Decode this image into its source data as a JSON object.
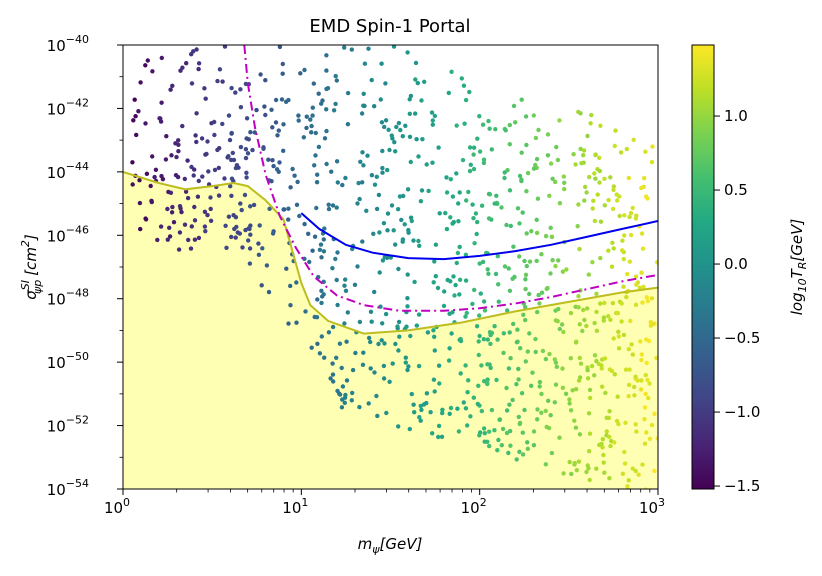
{
  "chart_data": {
    "type": "scatter",
    "title": "EMD Spin-1 Portal",
    "xlabel": {
      "base": "m",
      "sub": "ψ",
      "unit": "[GeV]"
    },
    "ylabel": {
      "base": "σ",
      "sup": "SI",
      "sub": "ψp",
      "unit": "[cm",
      "unit_sup": "2",
      "unit_end": "]"
    },
    "x_scale": "log",
    "y_scale": "log",
    "xlim_exp": [
      0,
      3
    ],
    "ylim_exp": [
      -54,
      -40
    ],
    "x_ticks": [
      {
        "base": "10",
        "exp": "0"
      },
      {
        "base": "10",
        "exp": "1"
      },
      {
        "base": "10",
        "exp": "2"
      },
      {
        "base": "10",
        "exp": "3"
      }
    ],
    "y_ticks": [
      {
        "base": "10",
        "exp": "−54"
      },
      {
        "base": "10",
        "exp": "−52"
      },
      {
        "base": "10",
        "exp": "−50"
      },
      {
        "base": "10",
        "exp": "−48"
      },
      {
        "base": "10",
        "exp": "−46"
      },
      {
        "base": "10",
        "exp": "−44"
      },
      {
        "base": "10",
        "exp": "−42"
      },
      {
        "base": "10",
        "exp": "−40"
      }
    ],
    "colorbar": {
      "label": {
        "base": "log",
        "sub": "10",
        "mid": "T",
        "sub2": "R",
        "unit": "[GeV]"
      },
      "range": [
        -1.52,
        1.48
      ],
      "ticks": [
        {
          "value": 1.0,
          "label": "1.0"
        },
        {
          "value": 0.5,
          "label": "0.5"
        },
        {
          "value": 0.0,
          "label": "0.0"
        },
        {
          "value": -0.5,
          "label": "−0.5"
        },
        {
          "value": -1.0,
          "label": "−1.0"
        },
        {
          "value": -1.5,
          "label": "−1.5"
        }
      ],
      "colormap": "viridis"
    },
    "series": [
      {
        "name": "neutrino floor",
        "kind": "filled-curve",
        "color": "#bdbd1f",
        "fill": "#ffffb3",
        "points": [
          [
            0,
            -44.0
          ],
          [
            0.2,
            -44.35
          ],
          [
            0.35,
            -44.55
          ],
          [
            0.5,
            -44.45
          ],
          [
            0.62,
            -44.35
          ],
          [
            0.7,
            -44.45
          ],
          [
            0.8,
            -44.9
          ],
          [
            0.9,
            -45.5
          ],
          [
            1.0,
            -47.5
          ],
          [
            1.05,
            -48.2
          ],
          [
            1.15,
            -48.7
          ],
          [
            1.35,
            -49.1
          ],
          [
            1.6,
            -49.0
          ],
          [
            1.9,
            -48.75
          ],
          [
            2.2,
            -48.4
          ],
          [
            2.5,
            -48.1
          ],
          [
            2.8,
            -47.8
          ],
          [
            3.0,
            -47.65
          ]
        ]
      },
      {
        "name": "blue limit",
        "kind": "line",
        "color": "#0000ee",
        "points": [
          [
            1.0,
            -45.3
          ],
          [
            1.1,
            -45.8
          ],
          [
            1.25,
            -46.3
          ],
          [
            1.4,
            -46.55
          ],
          [
            1.6,
            -46.72
          ],
          [
            1.8,
            -46.75
          ],
          [
            2.0,
            -46.65
          ],
          [
            2.2,
            -46.5
          ],
          [
            2.4,
            -46.3
          ],
          [
            2.6,
            -46.05
          ],
          [
            2.8,
            -45.8
          ],
          [
            3.0,
            -45.55
          ]
        ]
      },
      {
        "name": "magenta projection",
        "kind": "dashdot",
        "color": "#c000c0",
        "points": [
          [
            0.68,
            -40.0
          ],
          [
            0.7,
            -41.2
          ],
          [
            0.74,
            -42.6
          ],
          [
            0.8,
            -44.1
          ],
          [
            0.88,
            -45.4
          ],
          [
            0.97,
            -46.4
          ],
          [
            1.07,
            -47.3
          ],
          [
            1.2,
            -47.9
          ],
          [
            1.35,
            -48.2
          ],
          [
            1.55,
            -48.38
          ],
          [
            1.8,
            -48.38
          ],
          [
            2.0,
            -48.3
          ],
          [
            2.2,
            -48.15
          ],
          [
            2.4,
            -47.95
          ],
          [
            2.6,
            -47.7
          ],
          [
            2.8,
            -47.45
          ],
          [
            3.0,
            -47.25
          ]
        ]
      }
    ],
    "scatter": {
      "name": "model points",
      "count": 1100,
      "x_range": [
        0,
        3
      ],
      "color_relation": "log10 T_R rises with log10 m_psi: c ≈ -1.5 + 0.98·log10(m_psi)"
    }
  }
}
